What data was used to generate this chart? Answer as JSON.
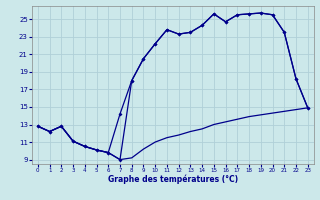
{
  "bg_color": "#cce8ea",
  "line_color": "#00008b",
  "grid_color": "#b0d0d8",
  "xlabel": "Graphe des températures (°C)",
  "ylim": [
    8.5,
    26.5
  ],
  "xlim": [
    -0.5,
    23.5
  ],
  "yticks": [
    9,
    11,
    13,
    15,
    17,
    19,
    21,
    23,
    25
  ],
  "xticks": [
    0,
    1,
    2,
    3,
    4,
    5,
    6,
    7,
    8,
    9,
    10,
    11,
    12,
    13,
    14,
    15,
    16,
    17,
    18,
    19,
    20,
    21,
    22,
    23
  ],
  "curve_main_x": [
    0,
    1,
    2,
    3,
    4,
    5,
    6,
    7,
    8,
    9,
    10,
    11,
    12,
    13,
    14,
    15,
    16,
    17,
    18,
    19,
    20,
    21,
    22,
    23
  ],
  "curve_main_y": [
    12.8,
    12.2,
    12.8,
    11.1,
    10.5,
    10.1,
    9.8,
    14.2,
    18.0,
    20.5,
    22.2,
    23.8,
    23.3,
    23.5,
    24.3,
    25.6,
    24.7,
    25.5,
    25.6,
    25.7,
    25.5,
    23.5,
    18.2,
    14.9
  ],
  "curve_min_x": [
    0,
    1,
    2,
    3,
    4,
    5,
    6,
    7,
    8,
    9,
    10,
    11,
    12,
    13,
    14,
    15,
    16,
    17,
    18,
    19,
    20,
    21,
    22,
    23
  ],
  "curve_min_y": [
    12.8,
    12.2,
    12.8,
    11.1,
    10.5,
    10.1,
    9.8,
    9.0,
    9.2,
    10.2,
    11.0,
    11.5,
    11.8,
    12.2,
    12.5,
    13.0,
    13.3,
    13.6,
    13.9,
    14.1,
    14.3,
    14.5,
    14.7,
    14.9
  ],
  "curve_dip_x": [
    0,
    1,
    2,
    3,
    4,
    5,
    6,
    7,
    8,
    9,
    10,
    11,
    12,
    13,
    14,
    15,
    16,
    17,
    18,
    19,
    20,
    21,
    22,
    23
  ],
  "curve_dip_y": [
    12.8,
    12.2,
    12.8,
    11.1,
    10.5,
    10.1,
    9.8,
    9.0,
    18.0,
    20.5,
    22.2,
    23.8,
    23.3,
    23.5,
    24.3,
    25.6,
    24.7,
    25.5,
    25.6,
    25.7,
    25.5,
    23.5,
    18.2,
    14.9
  ]
}
